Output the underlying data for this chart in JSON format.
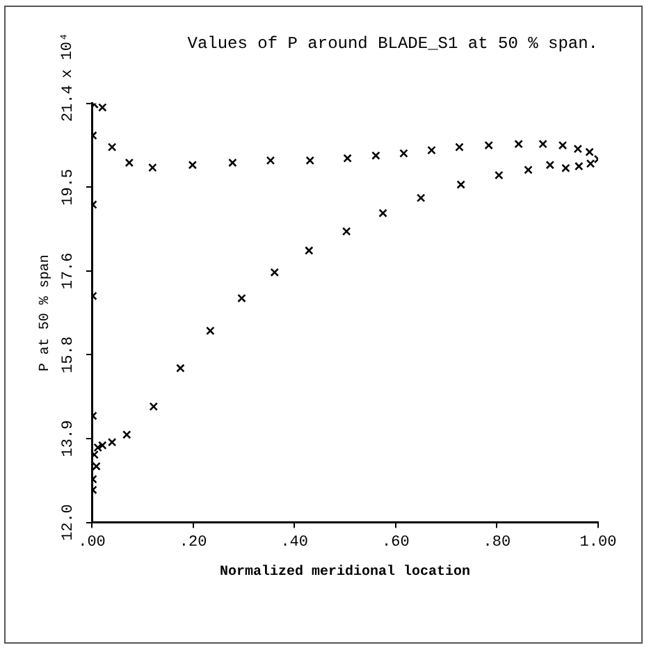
{
  "chart_data": {
    "type": "scatter",
    "title": "Values of P around BLADE_S1 at 50 % span.",
    "xlabel": "Normalized meridional location",
    "ylabel": "P at 50 % span",
    "annotations": [
      "x 10⁴"
    ],
    "marker": "cross",
    "grid": false,
    "legend": false,
    "xlim": [
      0,
      1
    ],
    "xticks": [
      {
        "value": 0,
        "label": ".00"
      },
      {
        "value": 0.2,
        "label": ".20"
      },
      {
        "value": 0.4,
        "label": ".40"
      },
      {
        "value": 0.6,
        "label": ".60"
      },
      {
        "value": 0.8,
        "label": ".80"
      },
      {
        "value": 1,
        "label": "1.00"
      }
    ],
    "ylim": [
      12.0,
      21.4
    ],
    "yticks": [
      {
        "value": 12.0,
        "label": "12.0"
      },
      {
        "value": 13.88,
        "label": "13.9"
      },
      {
        "value": 15.76,
        "label": "15.8"
      },
      {
        "value": 17.64,
        "label": "17.6"
      },
      {
        "value": 19.52,
        "label": "19.5"
      },
      {
        "value": 21.4,
        "label": "21.4"
      }
    ],
    "series": [
      {
        "color": "#000000",
        "x": [
          0.002,
          0.002,
          0.002,
          0.009,
          0.005,
          0.012,
          0.021,
          0.04,
          0.069,
          0.122,
          0.175,
          0.234,
          0.296,
          0.361,
          0.429,
          0.503,
          0.575,
          0.65,
          0.729,
          0.804,
          0.862,
          0.905,
          0.936,
          0.962,
          0.985,
          1.0,
          0.983,
          0.96,
          0.93,
          0.891,
          0.843,
          0.784,
          0.726,
          0.671,
          0.616,
          0.561,
          0.505,
          0.431,
          0.353,
          0.278,
          0.199,
          0.12,
          0.074,
          0.04,
          0.021,
          0.005,
          0.002,
          0.002,
          0.002
        ],
        "values": [
          12.73,
          12.97,
          14.39,
          13.26,
          13.52,
          13.68,
          13.73,
          13.8,
          13.97,
          14.6,
          15.46,
          16.3,
          17.03,
          17.61,
          18.1,
          18.53,
          18.94,
          19.28,
          19.58,
          19.79,
          19.91,
          20.02,
          19.95,
          19.99,
          20.05,
          20.15,
          20.31,
          20.38,
          20.46,
          20.49,
          20.49,
          20.46,
          20.42,
          20.35,
          20.28,
          20.23,
          20.17,
          20.12,
          20.12,
          20.07,
          20.02,
          19.96,
          20.07,
          20.42,
          21.31,
          21.38,
          20.68,
          19.13,
          17.08
        ]
      }
    ]
  }
}
